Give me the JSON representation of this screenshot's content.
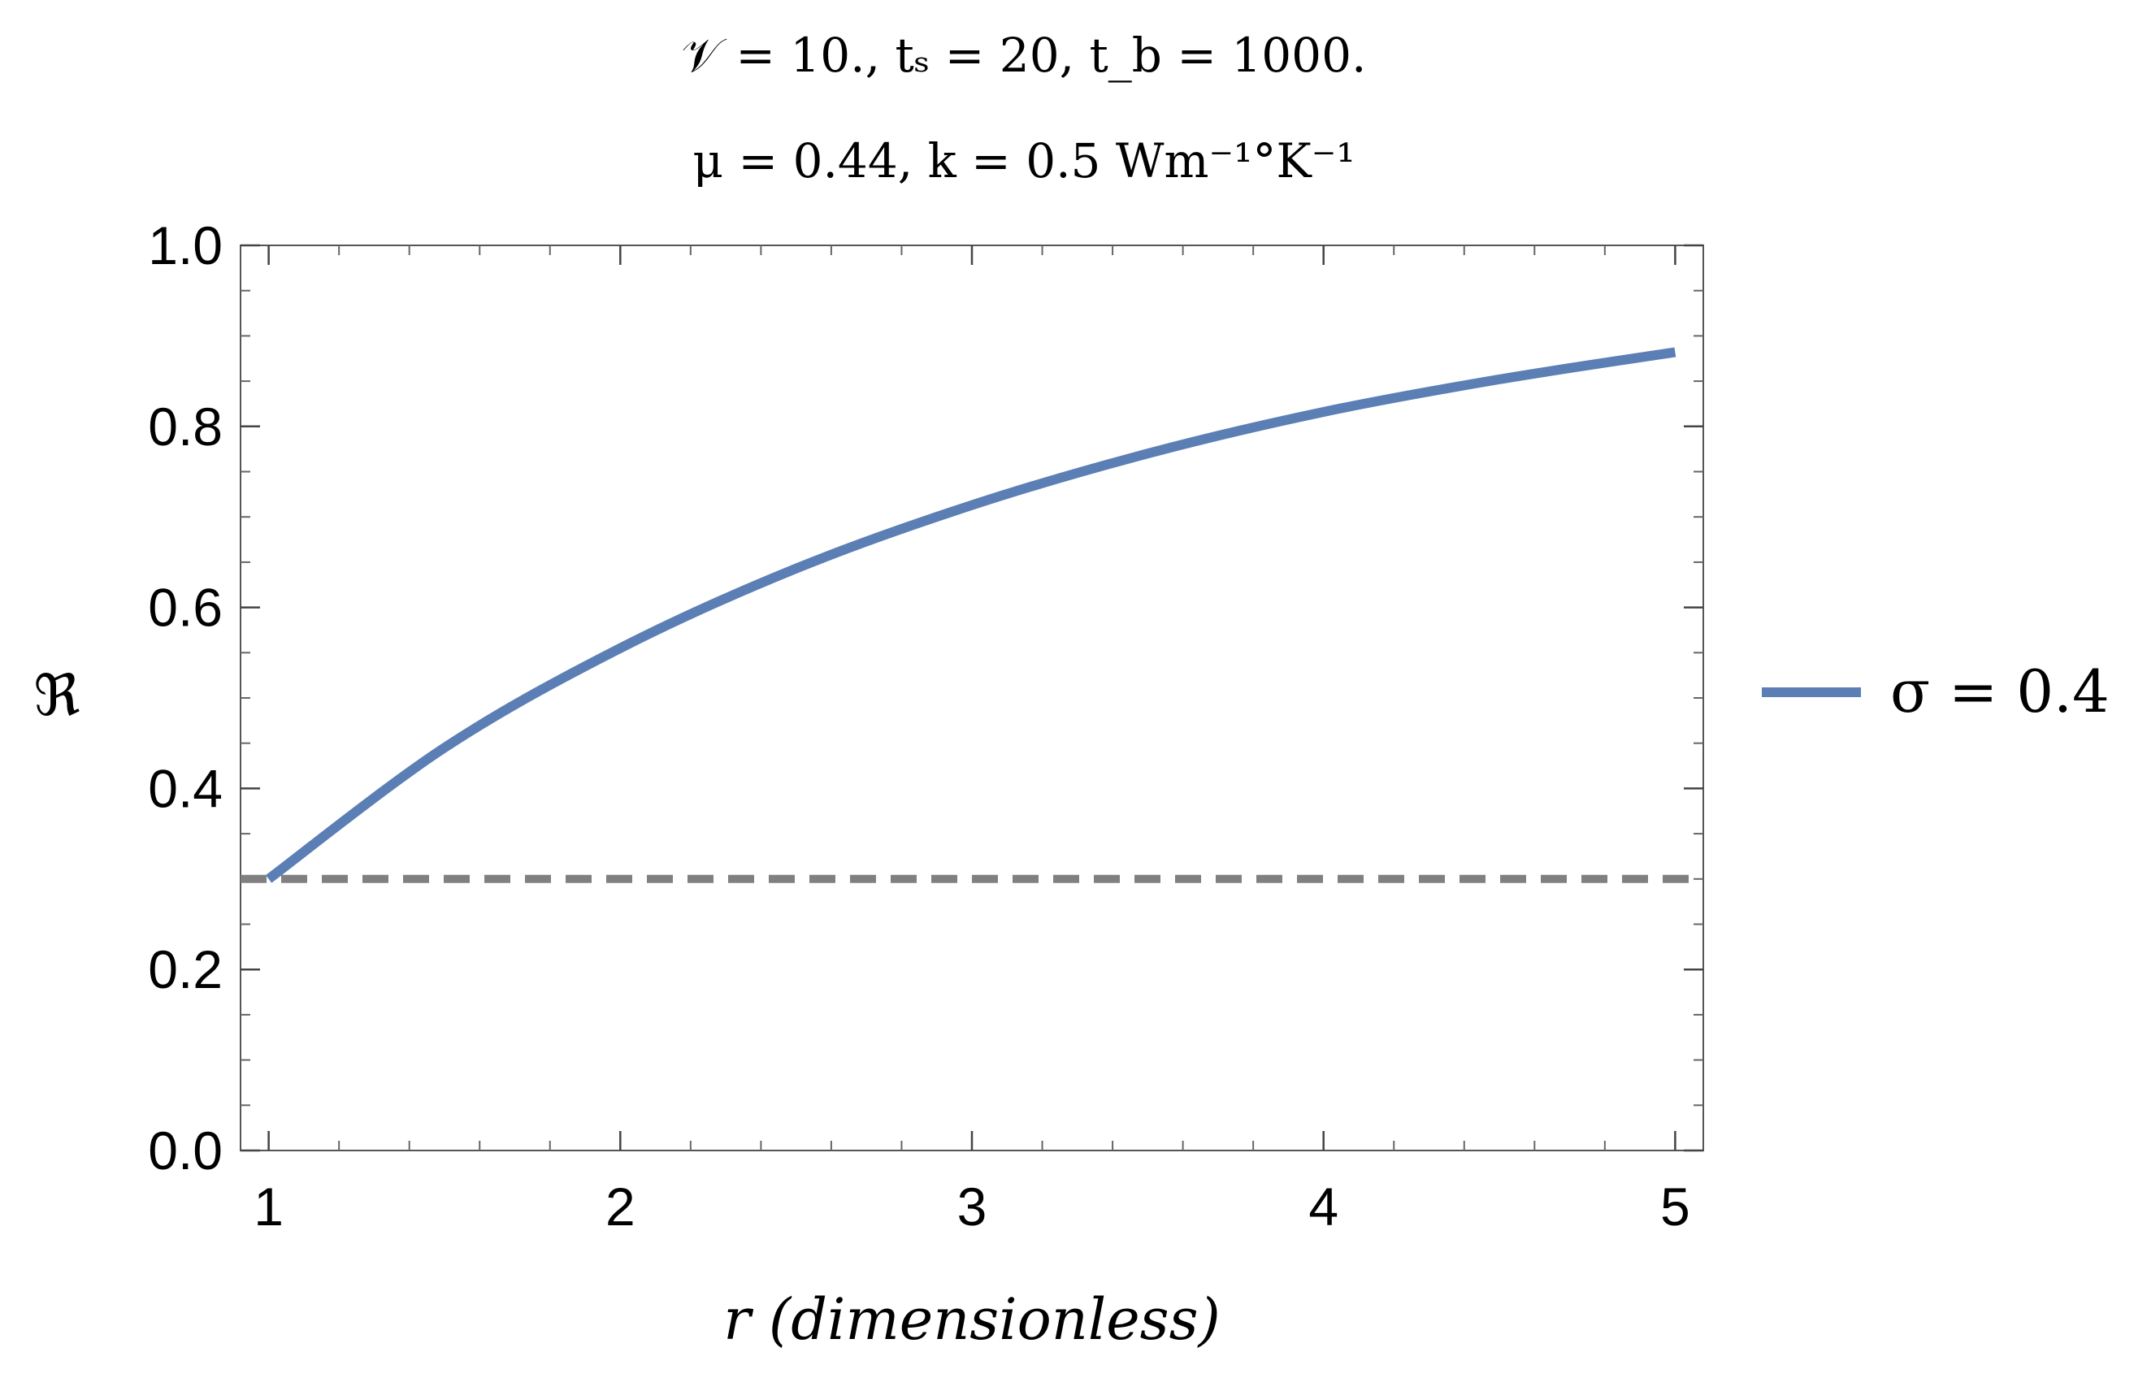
{
  "chart_data": {
    "type": "line",
    "title_line1": "𝒱 = 10.,  tₛ = 20,  t_b = 1000.",
    "title_line2": "μ = 0.44,  k = 0.5 Wm⁻¹°K⁻¹",
    "xlabel": "r  (dimensionless)",
    "ylabel": "ℜ",
    "xlim": [
      0.92,
      5.08
    ],
    "ylim": [
      0.0,
      1.0
    ],
    "x_ticks": [
      1,
      2,
      3,
      4,
      5
    ],
    "x_tick_labels": [
      "1",
      "2",
      "3",
      "4",
      "5"
    ],
    "y_ticks": [
      0.0,
      0.2,
      0.4,
      0.6,
      0.8,
      1.0
    ],
    "y_tick_labels": [
      "0.0",
      "0.2",
      "0.4",
      "0.6",
      "0.8",
      "1.0"
    ],
    "grid": false,
    "legend_position": "right",
    "series": [
      {
        "name": "σ = 0.4",
        "color": "#5b7fb5",
        "x": [
          1.0,
          1.5,
          2.0,
          2.5,
          3.0,
          3.5,
          4.0,
          4.5,
          5.0
        ],
        "y": [
          0.3,
          0.445,
          0.555,
          0.643,
          0.713,
          0.77,
          0.816,
          0.852,
          0.882
        ]
      }
    ],
    "reference_line": {
      "y": 0.3,
      "color": "#808080",
      "style": "dashed"
    }
  }
}
